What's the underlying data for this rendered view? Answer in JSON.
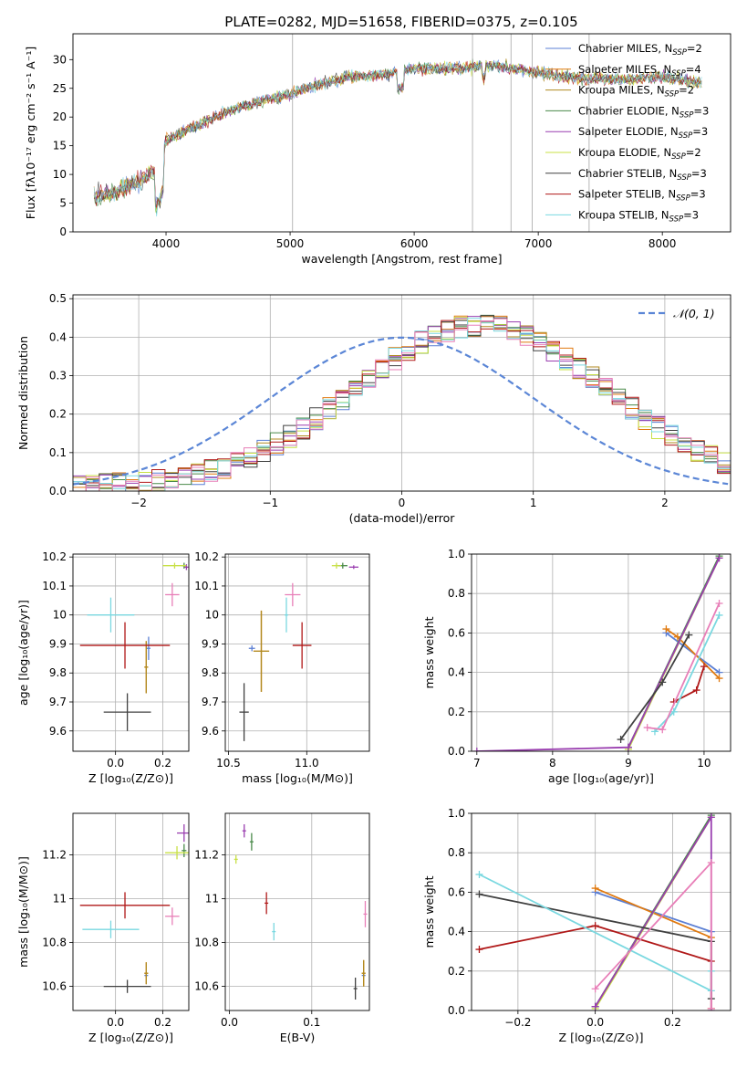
{
  "figure": {
    "title": "PLATE=0282, MJD=51658, FIBERID=0375, z=0.105"
  },
  "colors": {
    "Chabrier MILES": "#5b7fd4",
    "Salpeter MILES": "#e07a10",
    "Kroupa MILES": "#b08a20",
    "Chabrier ELODIE": "#4a8a4a",
    "Salpeter ELODIE": "#9a3fb0",
    "Kroupa ELODIE": "#c8e046",
    "Chabrier STELIB": "#404040",
    "Salpeter STELIB": "#b01818",
    "Kroupa STELIB": "#7ad8e0",
    "pink": "#e87fb8",
    "gaussian": "#5b86d6",
    "grid": "#b0b0b0"
  },
  "chart_data": [
    {
      "id": "spectrum",
      "type": "line",
      "xlabel": "wavelength [Angstrom, rest frame]",
      "ylabel": "Flux [fλ10⁻¹⁷ erg cm⁻² s⁻¹ A⁻¹]",
      "xlim": [
        3250,
        8550
      ],
      "ylim": [
        0,
        34.5
      ],
      "xticks": [
        4000,
        5000,
        6000,
        7000,
        8000
      ],
      "yticks": [
        0,
        5,
        10,
        15,
        20,
        25,
        30
      ],
      "grid": false,
      "legend_position": "right",
      "spectrum_shape": [
        [
          3400,
          6
        ],
        [
          3600,
          7
        ],
        [
          3800,
          9
        ],
        [
          3950,
          11
        ],
        [
          4000,
          16
        ],
        [
          4200,
          18
        ],
        [
          4500,
          21
        ],
        [
          4800,
          23
        ],
        [
          5000,
          24
        ],
        [
          5200,
          25.5
        ],
        [
          5500,
          27
        ],
        [
          5800,
          27.5
        ],
        [
          6000,
          28.5
        ],
        [
          6400,
          28.5
        ],
        [
          6600,
          29
        ],
        [
          6800,
          28.5
        ],
        [
          7200,
          27
        ],
        [
          7600,
          26.5
        ],
        [
          8000,
          27
        ],
        [
          8300,
          26
        ]
      ],
      "series": [
        {
          "name": "Chabrier MILES, N_SSP=2",
          "label_main": "Chabrier MILES, N",
          "label_sub": "SSP",
          "label_tail": "=2"
        },
        {
          "name": "Salpeter MILES, N_SSP=4",
          "label_main": "Salpeter MILES, N",
          "label_sub": "SSP",
          "label_tail": "=4"
        },
        {
          "name": "Kroupa MILES, N_SSP=2",
          "label_main": "Kroupa MILES, N",
          "label_sub": "SSP",
          "label_tail": "=2"
        },
        {
          "name": "Chabrier ELODIE, N_SSP=3",
          "label_main": "Chabrier ELODIE, N",
          "label_sub": "SSP",
          "label_tail": "=3"
        },
        {
          "name": "Salpeter ELODIE, N_SSP=3",
          "label_main": "Salpeter ELODIE, N",
          "label_sub": "SSP",
          "label_tail": "=3"
        },
        {
          "name": "Kroupa ELODIE, N_SSP=2",
          "label_main": "Kroupa ELODIE, N",
          "label_sub": "SSP",
          "label_tail": "=2"
        },
        {
          "name": "Chabrier STELIB, N_SSP=3",
          "label_main": "Chabrier STELIB, N",
          "label_sub": "SSP",
          "label_tail": "=3"
        },
        {
          "name": "Salpeter STELIB, N_SSP=3",
          "label_main": "Salpeter STELIB, N",
          "label_sub": "SSP",
          "label_tail": "=3"
        },
        {
          "name": "Kroupa STELIB, N_SSP=3",
          "label_main": "Kroupa STELIB, N",
          "label_sub": "SSP",
          "label_tail": "=3"
        }
      ]
    },
    {
      "id": "residuals",
      "type": "histogram",
      "xlabel": "(data-model)/error",
      "ylabel": "Normed distribution",
      "xlim": [
        -2.5,
        2.5
      ],
      "ylim": [
        0,
        0.51
      ],
      "xticks": [
        -2,
        -1,
        0,
        1,
        2
      ],
      "xtick_labels": [
        "−2",
        "−1",
        "0",
        "1",
        "2"
      ],
      "yticks": [
        0.0,
        0.1,
        0.2,
        0.3,
        0.4,
        0.5
      ],
      "ytick_labels": [
        "0.0",
        "0.1",
        "0.2",
        "0.3",
        "0.4",
        "0.5"
      ],
      "grid": true,
      "legend": "𝒩(0, 1)",
      "legend_position": "top-right",
      "bin_width": 0.1
    },
    {
      "id": "age-vs-Z",
      "type": "scatter",
      "xlabel": "Z [log₁₀(Z/Z⊙)]",
      "ylabel": "age  [log₁₀(age/yr)]",
      "xlim": [
        -0.18,
        0.31
      ],
      "ylim": [
        9.53,
        10.21
      ],
      "xticks": [
        0.0,
        0.2
      ],
      "xtick_labels": [
        "0.0",
        "0.2"
      ],
      "yticks": [
        9.6,
        9.7,
        9.8,
        9.9,
        10.0,
        10.1,
        10.2
      ],
      "grid": true,
      "points": [
        {
          "series": "Chabrier MILES",
          "x": 0.14,
          "y": 9.885,
          "xerr": 0.005,
          "yerr": 0.04
        },
        {
          "series": "Salpeter MILES",
          "x": 0.13,
          "y": 9.82,
          "xerr": 0.005,
          "yerr": 0.09
        },
        {
          "series": "Kroupa MILES",
          "x": 0.13,
          "y": 9.82,
          "xerr": 0.005,
          "yerr": 0.09
        },
        {
          "series": "Chabrier ELODIE",
          "x": 0.29,
          "y": 10.17,
          "xerr": 0.01,
          "yerr": 0.01
        },
        {
          "series": "Salpeter ELODIE",
          "x": 0.3,
          "y": 10.165,
          "xerr": 0.005,
          "yerr": 0.01
        },
        {
          "series": "Kroupa ELODIE",
          "x": 0.25,
          "y": 10.17,
          "xerr": 0.05,
          "yerr": 0.01
        },
        {
          "series": "Chabrier STELIB",
          "x": 0.05,
          "y": 9.665,
          "xerr": 0.1,
          "yerr": 0.065
        },
        {
          "series": "Salpeter STELIB",
          "x": 0.04,
          "y": 9.895,
          "xerr": 0.19,
          "yerr": 0.08
        },
        {
          "series": "Kroupa STELIB",
          "x": -0.02,
          "y": 10.0,
          "xerr": 0.1,
          "yerr": 0.06
        },
        {
          "series": "pink",
          "x": 0.24,
          "y": 10.07,
          "xerr": 0.03,
          "yerr": 0.04
        }
      ]
    },
    {
      "id": "age-vs-mass",
      "type": "scatter",
      "xlabel": "mass [log₁₀(M/M⊙)]",
      "ylabel": "",
      "xlim": [
        10.48,
        11.4
      ],
      "ylim": [
        9.53,
        10.21
      ],
      "xticks": [
        10.5,
        11.0
      ],
      "xtick_labels": [
        "10.5",
        "11.0"
      ],
      "yticks": [
        9.6,
        9.7,
        9.8,
        9.9,
        10.0,
        10.1,
        10.2
      ],
      "grid": true,
      "points": [
        {
          "series": "Chabrier MILES",
          "x": 10.65,
          "y": 9.885,
          "xerr": 0.02,
          "yerr": 0.01
        },
        {
          "series": "Salpeter MILES",
          "x": 10.71,
          "y": 9.875,
          "xerr": 0.05,
          "yerr": 0.14
        },
        {
          "series": "Kroupa MILES",
          "x": 10.71,
          "y": 9.875,
          "xerr": 0.05,
          "yerr": 0.14
        },
        {
          "series": "Chabrier ELODIE",
          "x": 11.23,
          "y": 10.17,
          "xerr": 0.03,
          "yerr": 0.01
        },
        {
          "series": "Salpeter ELODIE",
          "x": 11.3,
          "y": 10.165,
          "xerr": 0.03,
          "yerr": 0.005
        },
        {
          "series": "Kroupa ELODIE",
          "x": 11.19,
          "y": 10.17,
          "xerr": 0.03,
          "yerr": 0.01
        },
        {
          "series": "Chabrier STELIB",
          "x": 10.6,
          "y": 9.665,
          "xerr": 0.03,
          "yerr": 0.1
        },
        {
          "series": "Salpeter STELIB",
          "x": 10.97,
          "y": 9.895,
          "xerr": 0.06,
          "yerr": 0.08
        },
        {
          "series": "Kroupa STELIB",
          "x": 10.87,
          "y": 10.0,
          "xerr": 0.01,
          "yerr": 0.06
        },
        {
          "series": "pink",
          "x": 10.91,
          "y": 10.07,
          "xerr": 0.05,
          "yerr": 0.04
        }
      ]
    },
    {
      "id": "weight-vs-age",
      "type": "line",
      "xlabel": "age  [log₁₀(age/yr)]",
      "ylabel": "mass weight",
      "xlim": [
        6.93,
        10.35
      ],
      "ylim": [
        0,
        1.0
      ],
      "xticks": [
        7,
        8,
        9,
        10
      ],
      "yticks": [
        0.0,
        0.2,
        0.4,
        0.6,
        0.8,
        1.0
      ],
      "ytick_labels": [
        "0.0",
        "0.2",
        "0.4",
        "0.6",
        "0.8",
        "1.0"
      ],
      "grid": true,
      "series": [
        {
          "name": "Chabrier MILES",
          "x": [
            9.5,
            10.2
          ],
          "y": [
            0.6,
            0.4
          ]
        },
        {
          "name": "Salpeter MILES",
          "x": [
            9.5,
            9.65,
            10.2
          ],
          "y": [
            0.62,
            0.58,
            0.37
          ]
        },
        {
          "name": "Kroupa ELODIE",
          "x": [
            9.0,
            10.2
          ],
          "y": [
            0.01,
            0.98
          ]
        },
        {
          "name": "Chabrier ELODIE",
          "x": [
            9.0,
            10.2
          ],
          "y": [
            0.02,
            0.99
          ]
        },
        {
          "name": "Salpeter ELODIE",
          "x": [
            7.0,
            9.0,
            10.2
          ],
          "y": [
            0.0,
            0.02,
            0.98
          ]
        },
        {
          "name": "Chabrier STELIB",
          "x": [
            8.9,
            9.45,
            9.8
          ],
          "y": [
            0.06,
            0.35,
            0.59
          ]
        },
        {
          "name": "Salpeter STELIB",
          "x": [
            9.6,
            9.9,
            10.0
          ],
          "y": [
            0.25,
            0.31,
            0.43
          ]
        },
        {
          "name": "Kroupa STELIB",
          "x": [
            9.35,
            9.6,
            10.2
          ],
          "y": [
            0.1,
            0.2,
            0.69
          ]
        },
        {
          "name": "pink",
          "x": [
            9.25,
            9.45,
            10.2
          ],
          "y": [
            0.12,
            0.11,
            0.75
          ]
        }
      ]
    },
    {
      "id": "mass-vs-Z",
      "type": "scatter",
      "xlabel": "Z [log₁₀(Z/Z⊙)]",
      "ylabel": "mass [log₁₀(M/M⊙)]",
      "xlim": [
        -0.18,
        0.31
      ],
      "ylim": [
        10.49,
        11.39
      ],
      "xticks": [
        0.0,
        0.2
      ],
      "xtick_labels": [
        "0.0",
        "0.2"
      ],
      "yticks": [
        10.6,
        10.8,
        11.0,
        11.2
      ],
      "grid": true,
      "points": [
        {
          "series": "Chabrier MILES",
          "x": 0.13,
          "y": 10.65,
          "xerr": 0.005,
          "yerr": 0.01
        },
        {
          "series": "Salpeter MILES",
          "x": 0.13,
          "y": 10.66,
          "xerr": 0.005,
          "yerr": 0.05
        },
        {
          "series": "Kroupa MILES",
          "x": 0.13,
          "y": 10.66,
          "xerr": 0.005,
          "yerr": 0.05
        },
        {
          "series": "Chabrier ELODIE",
          "x": 0.29,
          "y": 11.22,
          "xerr": 0.01,
          "yerr": 0.03
        },
        {
          "series": "Salpeter ELODIE",
          "x": 0.29,
          "y": 11.3,
          "xerr": 0.03,
          "yerr": 0.04
        },
        {
          "series": "Kroupa ELODIE",
          "x": 0.26,
          "y": 11.21,
          "xerr": 0.05,
          "yerr": 0.03
        },
        {
          "series": "Chabrier STELIB",
          "x": 0.05,
          "y": 10.6,
          "xerr": 0.1,
          "yerr": 0.03
        },
        {
          "series": "Salpeter STELIB",
          "x": 0.04,
          "y": 10.97,
          "xerr": 0.19,
          "yerr": 0.06
        },
        {
          "series": "Kroupa STELIB",
          "x": -0.02,
          "y": 10.86,
          "xerr": 0.12,
          "yerr": 0.04
        },
        {
          "series": "pink",
          "x": 0.24,
          "y": 10.92,
          "xerr": 0.03,
          "yerr": 0.04
        }
      ]
    },
    {
      "id": "mass-vs-EBV",
      "type": "scatter",
      "xlabel": "E(B-V)",
      "ylabel": "",
      "xlim": [
        -0.005,
        0.17
      ],
      "ylim": [
        10.49,
        11.39
      ],
      "xticks": [
        0.0,
        0.1
      ],
      "xtick_labels": [
        "0.0",
        "0.1"
      ],
      "yticks": [
        10.6,
        10.8,
        11.0,
        11.2
      ],
      "grid": true,
      "points": [
        {
          "series": "Chabrier MILES",
          "x": 0.163,
          "y": 10.65,
          "xerr": 0.0,
          "yerr": 0.01
        },
        {
          "series": "Salpeter MILES",
          "x": 0.163,
          "y": 10.66,
          "xerr": 0.0,
          "yerr": 0.06
        },
        {
          "series": "Kroupa MILES",
          "x": 0.163,
          "y": 10.66,
          "xerr": 0.0,
          "yerr": 0.06
        },
        {
          "series": "Chabrier ELODIE",
          "x": 0.027,
          "y": 11.26,
          "xerr": 0.0,
          "yerr": 0.04
        },
        {
          "series": "Salpeter ELODIE",
          "x": 0.018,
          "y": 11.31,
          "xerr": 0.0,
          "yerr": 0.03
        },
        {
          "series": "Kroupa ELODIE",
          "x": 0.008,
          "y": 11.18,
          "xerr": 0.0,
          "yerr": 0.02
        },
        {
          "series": "Chabrier STELIB",
          "x": 0.153,
          "y": 10.59,
          "xerr": 0.0,
          "yerr": 0.05
        },
        {
          "series": "Salpeter STELIB",
          "x": 0.045,
          "y": 10.98,
          "xerr": 0.0,
          "yerr": 0.05
        },
        {
          "series": "Kroupa STELIB",
          "x": 0.054,
          "y": 10.85,
          "xerr": 0.0,
          "yerr": 0.04
        },
        {
          "series": "pink",
          "x": 0.165,
          "y": 10.93,
          "xerr": 0.0,
          "yerr": 0.06
        }
      ]
    },
    {
      "id": "weight-vs-Z",
      "type": "line",
      "xlabel": "Z [log₁₀(Z/Z⊙)]",
      "ylabel": "mass weight",
      "xlim": [
        -0.32,
        0.35
      ],
      "ylim": [
        0,
        1.0
      ],
      "xticks": [
        -0.2,
        0.0,
        0.2
      ],
      "xtick_labels": [
        "−0.2",
        "0.0",
        "0.2"
      ],
      "yticks": [
        0.0,
        0.2,
        0.4,
        0.6,
        0.8,
        1.0
      ],
      "ytick_labels": [
        "0.0",
        "0.2",
        "0.4",
        "0.6",
        "0.8",
        "1.0"
      ],
      "grid": true,
      "series": [
        {
          "name": "Chabrier MILES",
          "x": [
            0.0,
            0.3
          ],
          "y": [
            0.6,
            0.4
          ]
        },
        {
          "name": "Salpeter MILES",
          "x": [
            0.0,
            0.3,
            0.3
          ],
          "y": [
            0.62,
            0.37,
            0.01
          ]
        },
        {
          "name": "Kroupa ELODIE",
          "x": [
            0.0,
            0.3
          ],
          "y": [
            0.01,
            0.98
          ]
        },
        {
          "name": "Chabrier ELODIE",
          "x": [
            0.0,
            0.3
          ],
          "y": [
            0.02,
            0.99
          ]
        },
        {
          "name": "Salpeter ELODIE",
          "x": [
            0.0,
            0.3,
            0.3
          ],
          "y": [
            0.02,
            0.98,
            0.0
          ]
        },
        {
          "name": "Chabrier STELIB",
          "x": [
            -0.3,
            0.3,
            0.3
          ],
          "y": [
            0.59,
            0.35,
            0.06
          ]
        },
        {
          "name": "Salpeter STELIB",
          "x": [
            -0.3,
            0.0,
            0.3
          ],
          "y": [
            0.31,
            0.43,
            0.25
          ]
        },
        {
          "name": "Kroupa STELIB",
          "x": [
            -0.3,
            0.3,
            0.3
          ],
          "y": [
            0.69,
            0.1,
            0.2
          ]
        },
        {
          "name": "pink",
          "x": [
            0.0,
            0.3,
            0.3
          ],
          "y": [
            0.11,
            0.75,
            0.01
          ]
        }
      ]
    }
  ]
}
